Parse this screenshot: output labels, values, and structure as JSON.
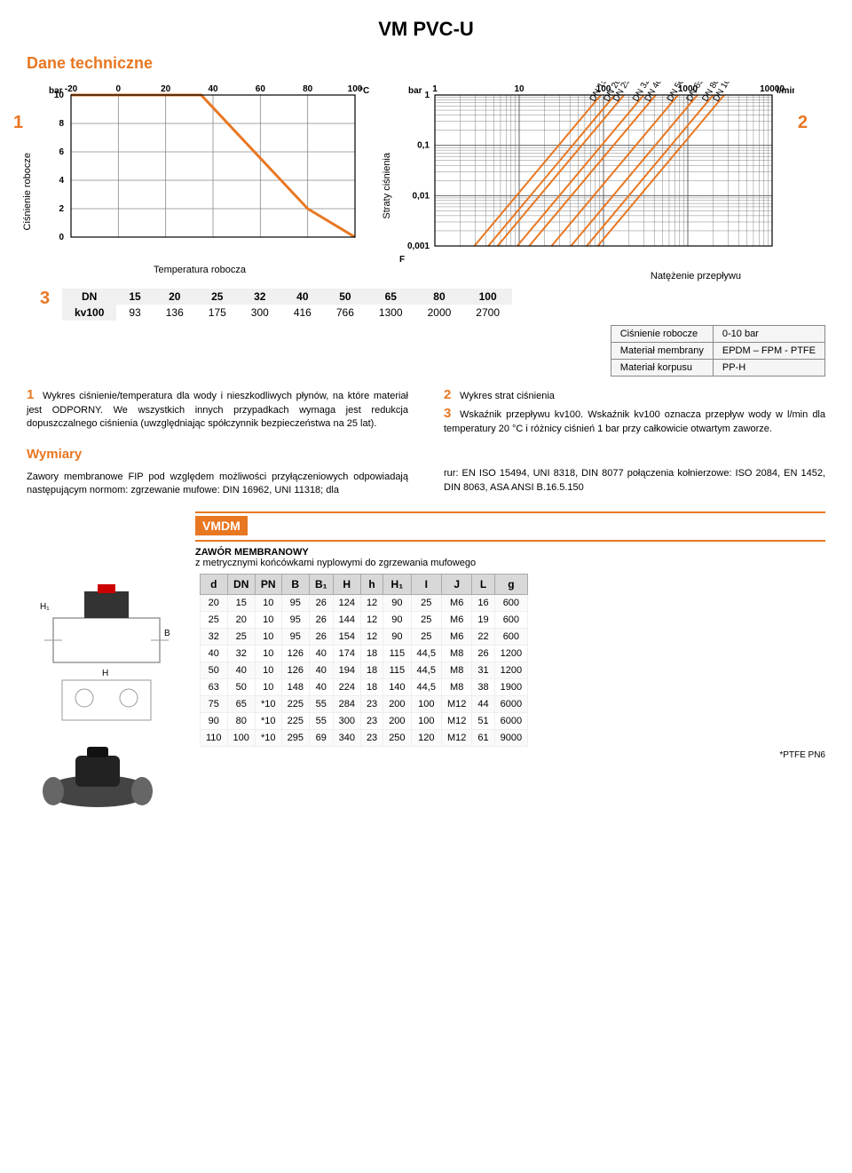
{
  "page": {
    "title": "VM PVC-U",
    "section": "Dane techniczne"
  },
  "chart1": {
    "num": "1",
    "y_label": "Ciśnienie robocze",
    "x_label": "Temperatura robocza",
    "y_unit": "bar",
    "x_unit": "°C",
    "x_ticks": [
      "-20",
      "0",
      "20",
      "40",
      "60",
      "80",
      "100"
    ],
    "y_ticks": [
      "0",
      "2",
      "4",
      "6",
      "8",
      "10"
    ],
    "curve": [
      [
        -20,
        10
      ],
      [
        20,
        10
      ],
      [
        35,
        10
      ],
      [
        80,
        2
      ],
      [
        100,
        0
      ]
    ],
    "line_color": "#e87722",
    "grid_color": "#888"
  },
  "chart2": {
    "num": "2",
    "y_label": "Straty ciśnienia",
    "x_label_right": "F",
    "flow_label": "Natężenie przepływu",
    "y_unit": "bar",
    "x_unit": "l/min",
    "x_ticks": [
      "1",
      "10",
      "100",
      "1000",
      "10000"
    ],
    "y_ticks": [
      "0,001",
      "0,01",
      "0,1",
      "1"
    ],
    "dn_labels": [
      "DN 15",
      "DN 20",
      "DN 25",
      "DN 32",
      "DN 40",
      "DN 50",
      "DN 65",
      "DN 80",
      "DN 100"
    ],
    "line_color": "#e87722",
    "grid_color": "#666"
  },
  "kv_table": {
    "num": "3",
    "headers": [
      "DN",
      "15",
      "20",
      "25",
      "32",
      "40",
      "50",
      "65",
      "80",
      "100"
    ],
    "row_label": "kv100",
    "values": [
      "93",
      "136",
      "175",
      "300",
      "416",
      "766",
      "1300",
      "2000",
      "2700"
    ]
  },
  "info_box": {
    "rows": [
      [
        "Ciśnienie robocze",
        "0-10 bar"
      ],
      [
        "Materiał membrany",
        "EPDM – FPM - PTFE"
      ],
      [
        "Materiał korpusu",
        "PP-H"
      ]
    ]
  },
  "text_left": {
    "n1": "1",
    "t1": "Wykres ciśnienie/temperatura dla wody i nieszkodliwych płynów, na które materiał jest ODPORNY. We wszystkich innych przypadkach wymaga jest redukcja dopuszczalnego ciśnienia (uwzględniając spółczynnik bezpieczeństwa na 25 lat).",
    "dims_title": "Wymiary",
    "dims_text": "Zawory membranowe FIP pod względem możliwości przyłączeniowych odpowiadają następującym normom: zgrzewanie mufowe: DIN 16962, UNI 11318; dla"
  },
  "text_right": {
    "n2": "2",
    "t2": "Wykres strat ciśnienia",
    "n3": "3",
    "t3": "Wskaźnik przepływu kv100. Wskaźnik kv100 oznacza przepływ wody w l/min dla temperatury 20 °C i różnicy ciśnień 1 bar przy całkowicie otwartym zaworze.",
    "norms": "rur: EN ISO 15494, UNI 8318, DIN 8077 połączenia kołnierzowe: ISO 2084, EN 1452, DIN 8063, ASA ANSI B.16.5.150"
  },
  "product": {
    "code": "VMDM",
    "name": "ZAWÓR MEMBRANOWY",
    "desc": "z metrycznymi końcówkami nyplowymi do zgrzewania mufowego"
  },
  "dim_table": {
    "headers": [
      "d",
      "DN",
      "PN",
      "B",
      "B₁",
      "H",
      "h",
      "H₁",
      "I",
      "J",
      "L",
      "g"
    ],
    "rows": [
      [
        "20",
        "15",
        "10",
        "95",
        "26",
        "124",
        "12",
        "90",
        "25",
        "M6",
        "16",
        "600"
      ],
      [
        "25",
        "20",
        "10",
        "95",
        "26",
        "144",
        "12",
        "90",
        "25",
        "M6",
        "19",
        "600"
      ],
      [
        "32",
        "25",
        "10",
        "95",
        "26",
        "154",
        "12",
        "90",
        "25",
        "M6",
        "22",
        "600"
      ],
      [
        "40",
        "32",
        "10",
        "126",
        "40",
        "174",
        "18",
        "115",
        "44,5",
        "M8",
        "26",
        "1200"
      ],
      [
        "50",
        "40",
        "10",
        "126",
        "40",
        "194",
        "18",
        "115",
        "44,5",
        "M8",
        "31",
        "1200"
      ],
      [
        "63",
        "50",
        "10",
        "148",
        "40",
        "224",
        "18",
        "140",
        "44,5",
        "M8",
        "38",
        "1900"
      ],
      [
        "75",
        "65",
        "*10",
        "225",
        "55",
        "284",
        "23",
        "200",
        "100",
        "M12",
        "44",
        "6000"
      ],
      [
        "90",
        "80",
        "*10",
        "225",
        "55",
        "300",
        "23",
        "200",
        "100",
        "M12",
        "51",
        "6000"
      ],
      [
        "110",
        "100",
        "*10",
        "295",
        "69",
        "340",
        "23",
        "250",
        "120",
        "M12",
        "61",
        "9000"
      ]
    ],
    "footnote": "*PTFE PN6"
  }
}
